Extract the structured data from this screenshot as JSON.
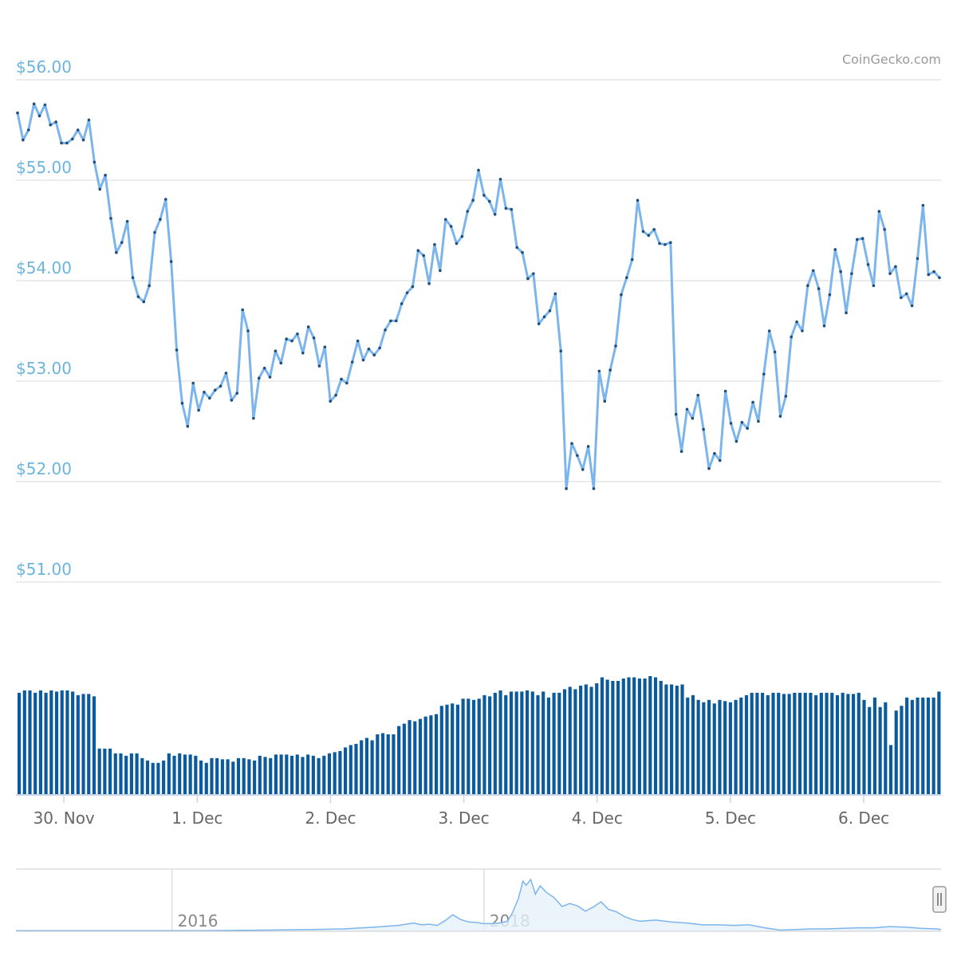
{
  "credit": "CoinGecko.com",
  "colors": {
    "price_line": "#7cb5ec",
    "point": "#1f4e79",
    "volume_bar": "#0b5b9c",
    "y_label": "#6cb4e0",
    "grid": "#e6e6e6",
    "axis_label": "#666666",
    "navigator_line": "#7cb5ec",
    "navigator_fill": "#e6f0fa"
  },
  "chart_data": [
    {
      "type": "line",
      "name": "price",
      "title": "",
      "xlabel": "",
      "ylabel": "",
      "ylim": [
        51,
        56
      ],
      "xlim": [
        29.64,
        36.58
      ],
      "y_ticks": [
        "$51.00",
        "$52.00",
        "$53.00",
        "$54.00",
        "$55.00",
        "$56.00"
      ],
      "y_tick_values": [
        51,
        52,
        53,
        54,
        55,
        56
      ],
      "x_ticks": [
        "30. Nov",
        "1. Dec",
        "2. Dec",
        "3. Dec",
        "4. Dec",
        "5. Dec",
        "6. Dec"
      ],
      "x_tick_values": [
        30,
        31,
        32,
        33,
        34,
        35,
        36
      ],
      "grid": true,
      "x_unit": "day of month (Nov 30 = 30, Dec 1 = 31 ...)",
      "values": [
        55.67,
        55.4,
        55.5,
        55.76,
        55.64,
        55.75,
        55.55,
        55.58,
        55.37,
        55.37,
        55.41,
        55.5,
        55.4,
        55.6,
        55.18,
        54.91,
        55.05,
        54.62,
        54.28,
        54.38,
        54.59,
        54.03,
        53.84,
        53.79,
        53.95,
        54.48,
        54.61,
        54.81,
        54.19,
        53.31,
        52.78,
        52.55,
        52.98,
        52.71,
        52.89,
        52.83,
        52.91,
        52.95,
        53.08,
        52.81,
        52.88,
        53.71,
        53.5,
        52.63,
        53.03,
        53.13,
        53.04,
        53.3,
        53.18,
        53.42,
        53.4,
        53.47,
        53.28,
        53.54,
        53.43,
        53.15,
        53.34,
        52.8,
        52.86,
        53.02,
        52.98,
        53.19,
        53.4,
        53.21,
        53.32,
        53.26,
        53.33,
        53.51,
        53.6,
        53.6,
        53.77,
        53.88,
        53.94,
        54.3,
        54.25,
        53.97,
        54.36,
        54.1,
        54.61,
        54.54,
        54.37,
        54.44,
        54.69,
        54.8,
        55.1,
        54.85,
        54.79,
        54.66,
        55.01,
        54.72,
        54.71,
        54.33,
        54.28,
        54.02,
        54.07,
        53.57,
        53.64,
        53.7,
        53.87,
        53.3,
        51.93,
        52.38,
        52.26,
        52.12,
        52.35,
        51.93,
        53.1,
        52.8,
        53.11,
        53.35,
        53.86,
        54.03,
        54.21,
        54.8,
        54.49,
        54.45,
        54.51,
        54.37,
        54.36,
        54.38,
        52.67,
        52.3,
        52.72,
        52.63,
        52.86,
        52.52,
        52.13,
        52.28,
        52.21,
        52.9,
        52.58,
        52.4,
        52.59,
        52.53,
        52.79,
        52.6,
        53.07,
        53.5,
        53.29,
        52.65,
        52.85,
        53.44,
        53.59,
        53.5,
        53.95,
        54.1,
        53.92,
        53.55,
        53.86,
        54.31,
        54.09,
        53.68,
        54.07,
        54.41,
        54.42,
        54.16,
        53.95,
        54.69,
        54.51,
        54.07,
        54.14,
        53.83,
        53.87,
        53.75,
        54.22,
        54.75,
        54.06,
        54.09,
        54.03
      ]
    },
    {
      "type": "bar",
      "name": "volume",
      "y_axis_labels": false,
      "ylim": [
        0,
        1
      ],
      "values": [
        0.86,
        0.88,
        0.88,
        0.86,
        0.88,
        0.86,
        0.88,
        0.87,
        0.88,
        0.88,
        0.87,
        0.84,
        0.85,
        0.85,
        0.83,
        0.39,
        0.39,
        0.39,
        0.35,
        0.35,
        0.33,
        0.35,
        0.35,
        0.31,
        0.29,
        0.27,
        0.27,
        0.29,
        0.35,
        0.33,
        0.35,
        0.34,
        0.34,
        0.33,
        0.29,
        0.27,
        0.31,
        0.31,
        0.3,
        0.3,
        0.28,
        0.31,
        0.31,
        0.3,
        0.29,
        0.33,
        0.32,
        0.31,
        0.34,
        0.34,
        0.34,
        0.33,
        0.34,
        0.32,
        0.34,
        0.33,
        0.31,
        0.33,
        0.35,
        0.36,
        0.37,
        0.4,
        0.42,
        0.43,
        0.46,
        0.48,
        0.46,
        0.51,
        0.52,
        0.51,
        0.51,
        0.58,
        0.6,
        0.63,
        0.62,
        0.64,
        0.66,
        0.67,
        0.68,
        0.75,
        0.76,
        0.77,
        0.76,
        0.81,
        0.81,
        0.8,
        0.81,
        0.84,
        0.83,
        0.86,
        0.88,
        0.84,
        0.87,
        0.87,
        0.87,
        0.88,
        0.87,
        0.84,
        0.87,
        0.82,
        0.86,
        0.86,
        0.89,
        0.91,
        0.89,
        0.92,
        0.93,
        0.91,
        0.94,
        0.99,
        0.97,
        0.96,
        0.96,
        0.98,
        0.99,
        0.99,
        0.98,
        0.98,
        1.0,
        0.99,
        0.96,
        0.93,
        0.93,
        0.92,
        0.93,
        0.82,
        0.84,
        0.8,
        0.78,
        0.8,
        0.77,
        0.8,
        0.79,
        0.78,
        0.8,
        0.82,
        0.84,
        0.86,
        0.86,
        0.86,
        0.84,
        0.86,
        0.86,
        0.85,
        0.85,
        0.86,
        0.86,
        0.86,
        0.86,
        0.84,
        0.86,
        0.86,
        0.86,
        0.84,
        0.86,
        0.85,
        0.85,
        0.86,
        0.8,
        0.74,
        0.82,
        0.74,
        0.78,
        0.42,
        0.71,
        0.75,
        0.82,
        0.8,
        0.82,
        0.82,
        0.82,
        0.82,
        0.87
      ]
    },
    {
      "type": "area",
      "name": "navigator",
      "x_ticks": [
        "2016",
        "2018"
      ],
      "x_tick_values": [
        2016,
        2018
      ],
      "x_range": [
        2015.0,
        2020.93
      ],
      "points": [
        [
          2015.0,
          0.01
        ],
        [
          2015.4,
          0.01
        ],
        [
          2015.8,
          0.01
        ],
        [
          2016.2,
          0.01
        ],
        [
          2016.6,
          0.02
        ],
        [
          2016.9,
          0.03
        ],
        [
          2017.1,
          0.04
        ],
        [
          2017.3,
          0.07
        ],
        [
          2017.45,
          0.1
        ],
        [
          2017.55,
          0.14
        ],
        [
          2017.6,
          0.11
        ],
        [
          2017.65,
          0.12
        ],
        [
          2017.7,
          0.1
        ],
        [
          2017.75,
          0.18
        ],
        [
          2017.8,
          0.28
        ],
        [
          2017.85,
          0.2
        ],
        [
          2017.9,
          0.16
        ],
        [
          2017.95,
          0.15
        ],
        [
          2018.0,
          0.13
        ],
        [
          2018.05,
          0.13
        ],
        [
          2018.1,
          0.14
        ],
        [
          2018.15,
          0.17
        ],
        [
          2018.18,
          0.3
        ],
        [
          2018.22,
          0.55
        ],
        [
          2018.25,
          0.85
        ],
        [
          2018.27,
          0.78
        ],
        [
          2018.3,
          0.88
        ],
        [
          2018.33,
          0.63
        ],
        [
          2018.36,
          0.77
        ],
        [
          2018.4,
          0.66
        ],
        [
          2018.45,
          0.57
        ],
        [
          2018.5,
          0.42
        ],
        [
          2018.55,
          0.47
        ],
        [
          2018.6,
          0.43
        ],
        [
          2018.65,
          0.34
        ],
        [
          2018.7,
          0.41
        ],
        [
          2018.75,
          0.5
        ],
        [
          2018.8,
          0.37
        ],
        [
          2018.85,
          0.33
        ],
        [
          2018.9,
          0.25
        ],
        [
          2018.95,
          0.2
        ],
        [
          2019.0,
          0.17
        ],
        [
          2019.1,
          0.19
        ],
        [
          2019.2,
          0.16
        ],
        [
          2019.3,
          0.14
        ],
        [
          2019.4,
          0.11
        ],
        [
          2019.5,
          0.11
        ],
        [
          2019.6,
          0.1
        ],
        [
          2019.7,
          0.11
        ],
        [
          2019.8,
          0.06
        ],
        [
          2019.9,
          0.02
        ],
        [
          2020.0,
          0.03
        ],
        [
          2020.1,
          0.04
        ],
        [
          2020.2,
          0.04
        ],
        [
          2020.3,
          0.05
        ],
        [
          2020.4,
          0.06
        ],
        [
          2020.5,
          0.06
        ],
        [
          2020.6,
          0.08
        ],
        [
          2020.7,
          0.07
        ],
        [
          2020.8,
          0.05
        ],
        [
          2020.9,
          0.04
        ],
        [
          2020.93,
          0.03
        ]
      ]
    }
  ]
}
